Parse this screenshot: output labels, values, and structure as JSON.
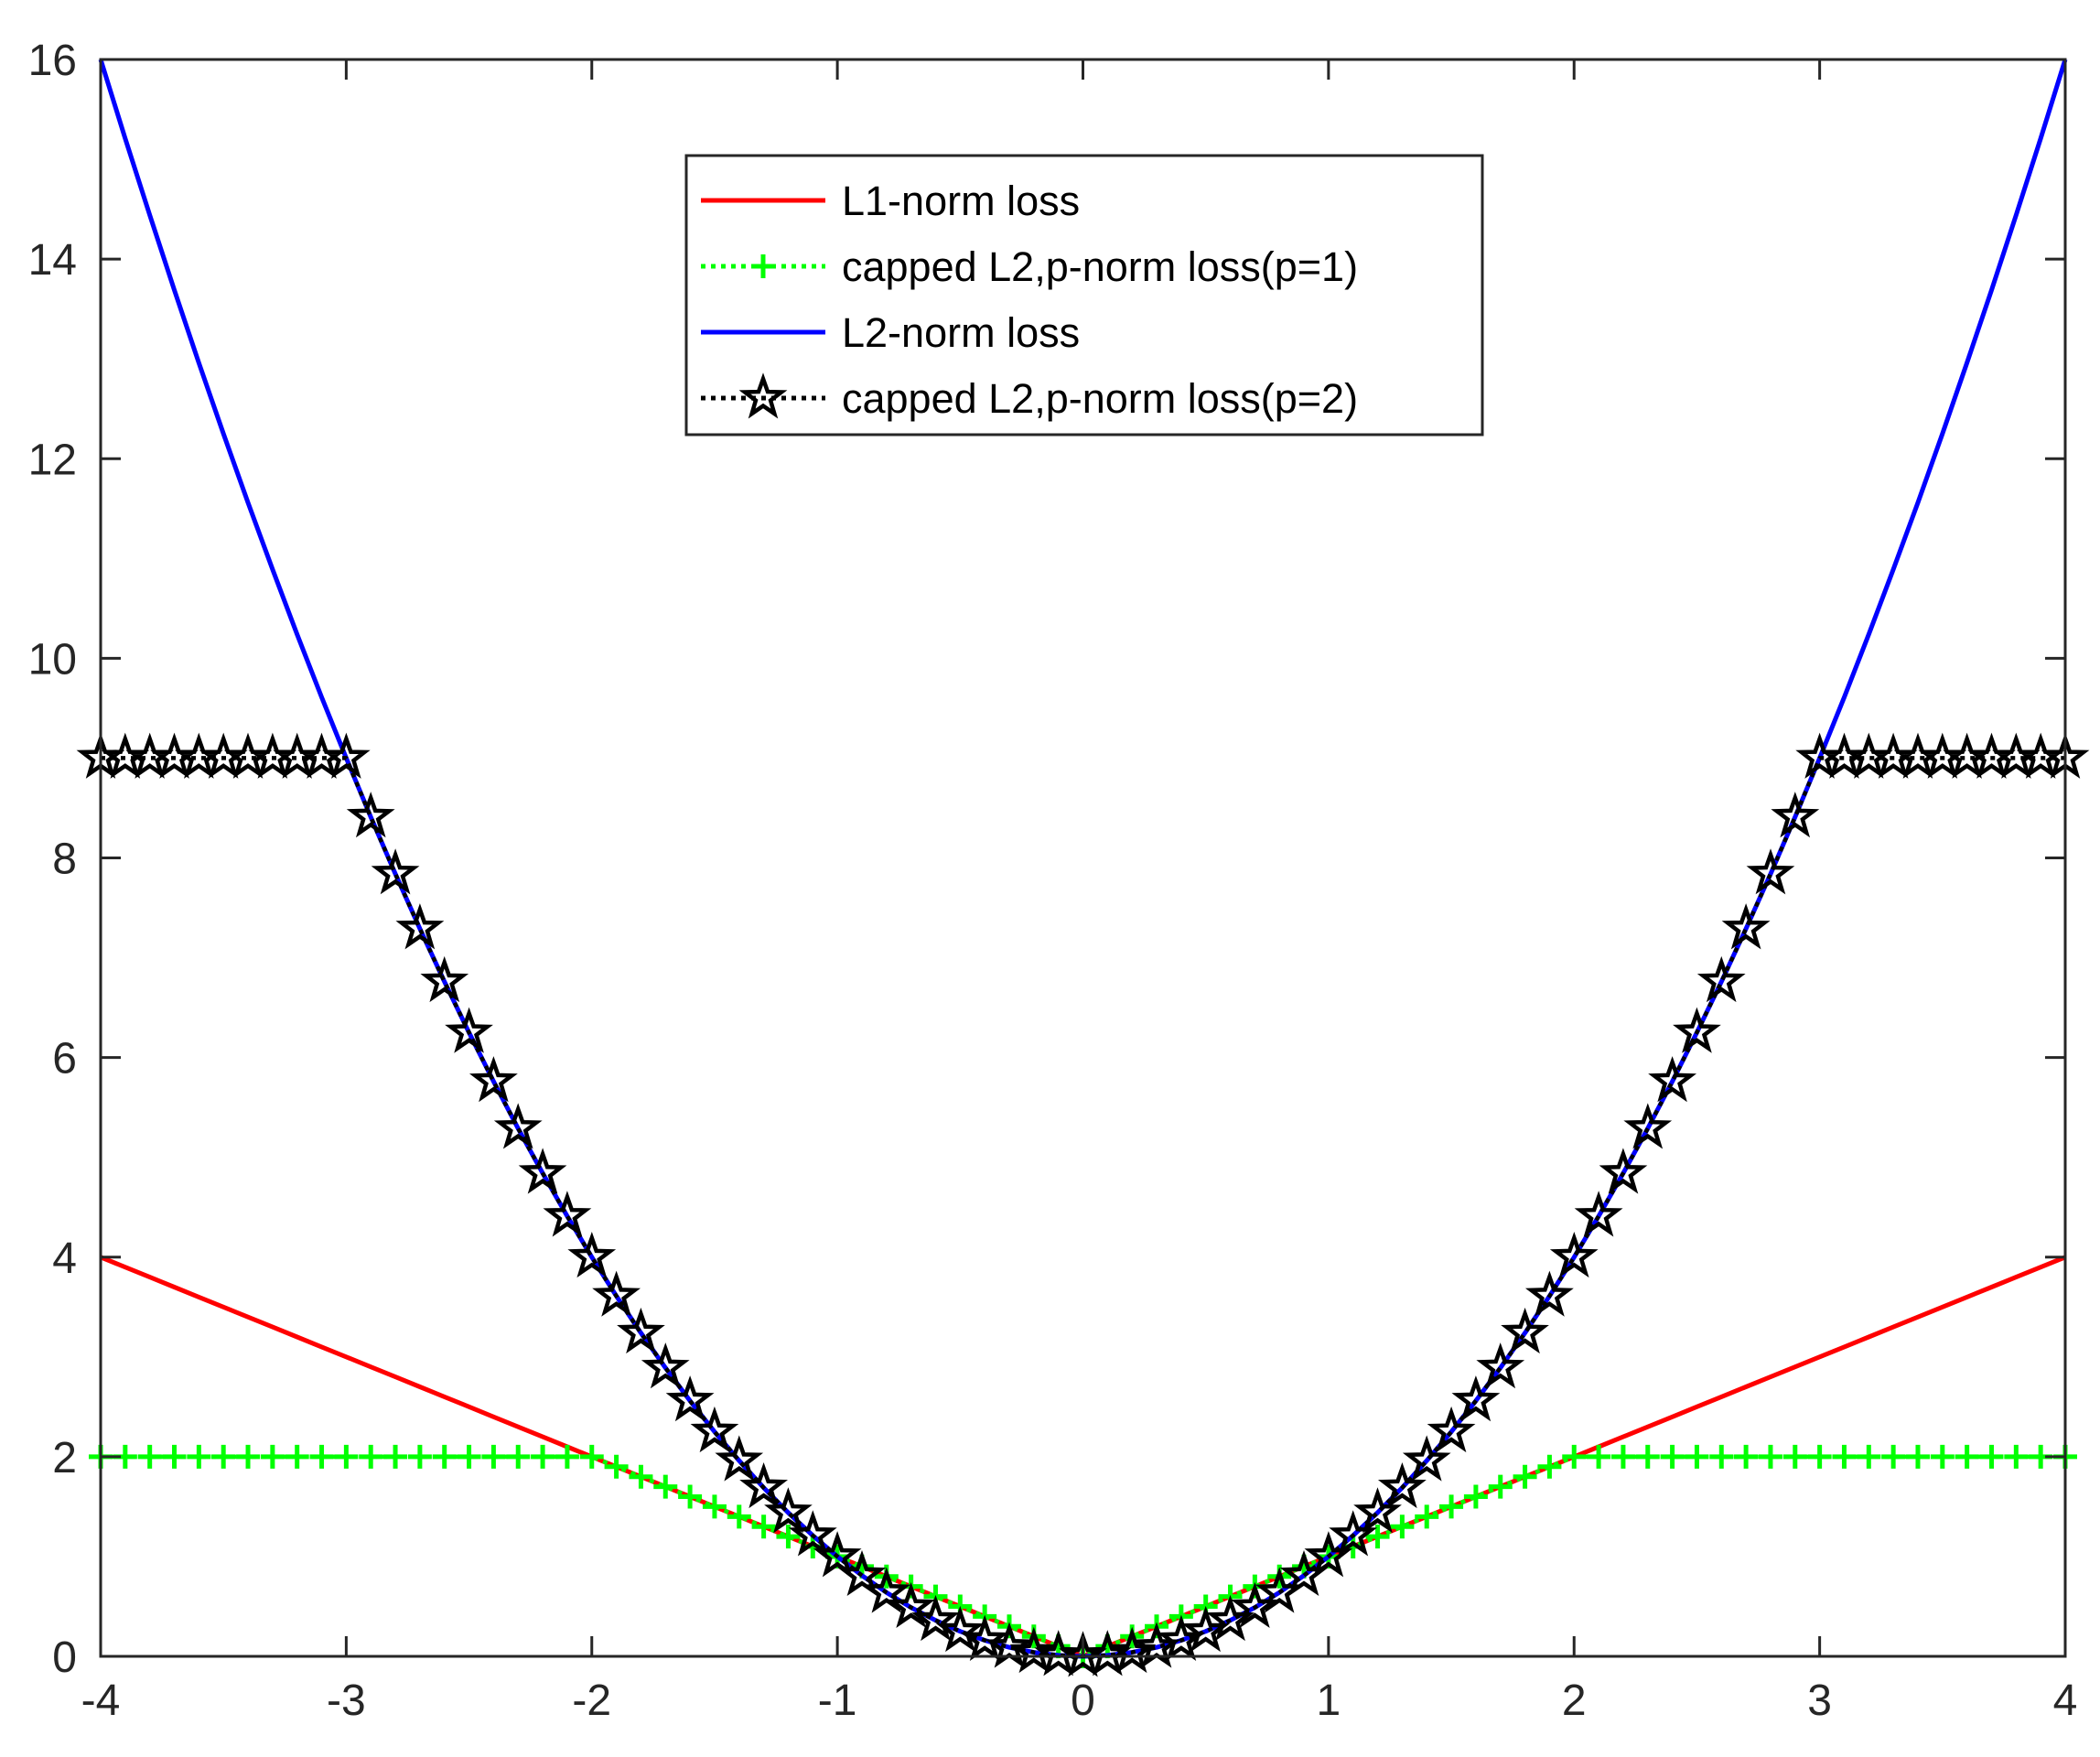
{
  "chart_data": {
    "type": "line",
    "title": "",
    "xlabel": "",
    "ylabel": "",
    "xlim": [
      -4,
      4
    ],
    "ylim": [
      0,
      16
    ],
    "xticks": [
      "-4",
      "-3",
      "-2",
      "-1",
      "0",
      "1",
      "2",
      "3",
      "4"
    ],
    "yticks": [
      "0",
      "2",
      "4",
      "6",
      "8",
      "10",
      "12",
      "14",
      "16"
    ],
    "grid": false,
    "legend_position": "top-center",
    "x": [
      -4.0,
      -3.9,
      -3.8,
      -3.7,
      -3.6,
      -3.5,
      -3.4,
      -3.3,
      -3.2,
      -3.1,
      -3.0,
      -2.9,
      -2.8,
      -2.7,
      -2.6,
      -2.5,
      -2.4,
      -2.3,
      -2.2,
      -2.1,
      -2.0,
      -1.9,
      -1.8,
      -1.7,
      -1.6,
      -1.5,
      -1.4,
      -1.3,
      -1.2,
      -1.1,
      -1.0,
      -0.9,
      -0.8,
      -0.7,
      -0.6,
      -0.5,
      -0.4,
      -0.3,
      -0.2,
      -0.1,
      0.0,
      0.1,
      0.2,
      0.3,
      0.4,
      0.5,
      0.6,
      0.7,
      0.8,
      0.9,
      1.0,
      1.1,
      1.2,
      1.3,
      1.4,
      1.5,
      1.6,
      1.7,
      1.8,
      1.9,
      2.0,
      2.1,
      2.2,
      2.3,
      2.4,
      2.5,
      2.6,
      2.7,
      2.8,
      2.9,
      3.0,
      3.1,
      3.2,
      3.3,
      3.4,
      3.5,
      3.6,
      3.7,
      3.8,
      3.9,
      4.0
    ],
    "series": [
      {
        "name": "L1-norm loss",
        "color": "#ff0000",
        "line_style": "solid",
        "marker": "none",
        "values": [
          4.0,
          3.9,
          3.8,
          3.7,
          3.6,
          3.5,
          3.4,
          3.3,
          3.2,
          3.1,
          3.0,
          2.9,
          2.8,
          2.7,
          2.6,
          2.5,
          2.4,
          2.3,
          2.2,
          2.1,
          2.0,
          1.9,
          1.8,
          1.7,
          1.6,
          1.5,
          1.4,
          1.3,
          1.2,
          1.1,
          1.0,
          0.9,
          0.8,
          0.7,
          0.6,
          0.5,
          0.4,
          0.3,
          0.2,
          0.1,
          0.0,
          0.1,
          0.2,
          0.3,
          0.4,
          0.5,
          0.6,
          0.7,
          0.8,
          0.9,
          1.0,
          1.1,
          1.2,
          1.3,
          1.4,
          1.5,
          1.6,
          1.7,
          1.8,
          1.9,
          2.0,
          2.1,
          2.2,
          2.3,
          2.4,
          2.5,
          2.6,
          2.7,
          2.8,
          2.9,
          3.0,
          3.1,
          3.2,
          3.3,
          3.4,
          3.5,
          3.6,
          3.7,
          3.8,
          3.9,
          4.0
        ]
      },
      {
        "name": "capped L2,p-norm loss(p=1)",
        "color": "#00ff00",
        "line_style": "dotted",
        "marker": "plus",
        "values": [
          2.0,
          2.0,
          2.0,
          2.0,
          2.0,
          2.0,
          2.0,
          2.0,
          2.0,
          2.0,
          2.0,
          2.0,
          2.0,
          2.0,
          2.0,
          2.0,
          2.0,
          2.0,
          2.0,
          2.0,
          2.0,
          1.9,
          1.8,
          1.7,
          1.6,
          1.5,
          1.4,
          1.3,
          1.2,
          1.1,
          1.0,
          0.9,
          0.8,
          0.7,
          0.6,
          0.5,
          0.4,
          0.3,
          0.2,
          0.1,
          0.0,
          0.1,
          0.2,
          0.3,
          0.4,
          0.5,
          0.6,
          0.7,
          0.8,
          0.9,
          1.0,
          1.1,
          1.2,
          1.3,
          1.4,
          1.5,
          1.6,
          1.7,
          1.8,
          1.9,
          2.0,
          2.0,
          2.0,
          2.0,
          2.0,
          2.0,
          2.0,
          2.0,
          2.0,
          2.0,
          2.0,
          2.0,
          2.0,
          2.0,
          2.0,
          2.0,
          2.0,
          2.0,
          2.0,
          2.0,
          2.0
        ]
      },
      {
        "name": "L2-norm loss",
        "color": "#0000ff",
        "line_style": "solid",
        "marker": "none",
        "values": [
          16.0,
          15.21,
          14.44,
          13.69,
          12.96,
          12.25,
          11.56,
          10.89,
          10.24,
          9.61,
          9.0,
          8.41,
          7.84,
          7.29,
          6.76,
          6.25,
          5.76,
          5.29,
          4.84,
          4.41,
          4.0,
          3.61,
          3.24,
          2.89,
          2.56,
          2.25,
          1.96,
          1.69,
          1.44,
          1.21,
          1.0,
          0.81,
          0.64,
          0.49,
          0.36,
          0.25,
          0.16,
          0.09,
          0.04,
          0.01,
          0.0,
          0.01,
          0.04,
          0.09,
          0.16,
          0.25,
          0.36,
          0.49,
          0.64,
          0.81,
          1.0,
          1.21,
          1.44,
          1.69,
          1.96,
          2.25,
          2.56,
          2.89,
          3.24,
          3.61,
          4.0,
          4.41,
          4.84,
          5.29,
          5.76,
          6.25,
          6.76,
          7.29,
          7.84,
          8.41,
          9.0,
          9.61,
          10.24,
          10.89,
          11.56,
          12.25,
          12.96,
          13.69,
          14.44,
          15.21,
          16.0
        ]
      },
      {
        "name": "capped L2,p-norm loss(p=2)",
        "color": "#000000",
        "line_style": "dotted",
        "marker": "pentagram",
        "values": [
          9.0,
          9.0,
          9.0,
          9.0,
          9.0,
          9.0,
          9.0,
          9.0,
          9.0,
          9.0,
          9.0,
          8.41,
          7.84,
          7.29,
          6.76,
          6.25,
          5.76,
          5.29,
          4.84,
          4.41,
          4.0,
          3.61,
          3.24,
          2.89,
          2.56,
          2.25,
          1.96,
          1.69,
          1.44,
          1.21,
          1.0,
          0.81,
          0.64,
          0.49,
          0.36,
          0.25,
          0.16,
          0.09,
          0.04,
          0.01,
          0.0,
          0.01,
          0.04,
          0.09,
          0.16,
          0.25,
          0.36,
          0.49,
          0.64,
          0.81,
          1.0,
          1.21,
          1.44,
          1.69,
          1.96,
          2.25,
          2.56,
          2.89,
          3.24,
          3.61,
          4.0,
          4.41,
          4.84,
          5.29,
          5.76,
          6.25,
          6.76,
          7.29,
          7.84,
          8.41,
          9.0,
          9.0,
          9.0,
          9.0,
          9.0,
          9.0,
          9.0,
          9.0,
          9.0,
          9.0,
          9.0
        ]
      }
    ]
  }
}
